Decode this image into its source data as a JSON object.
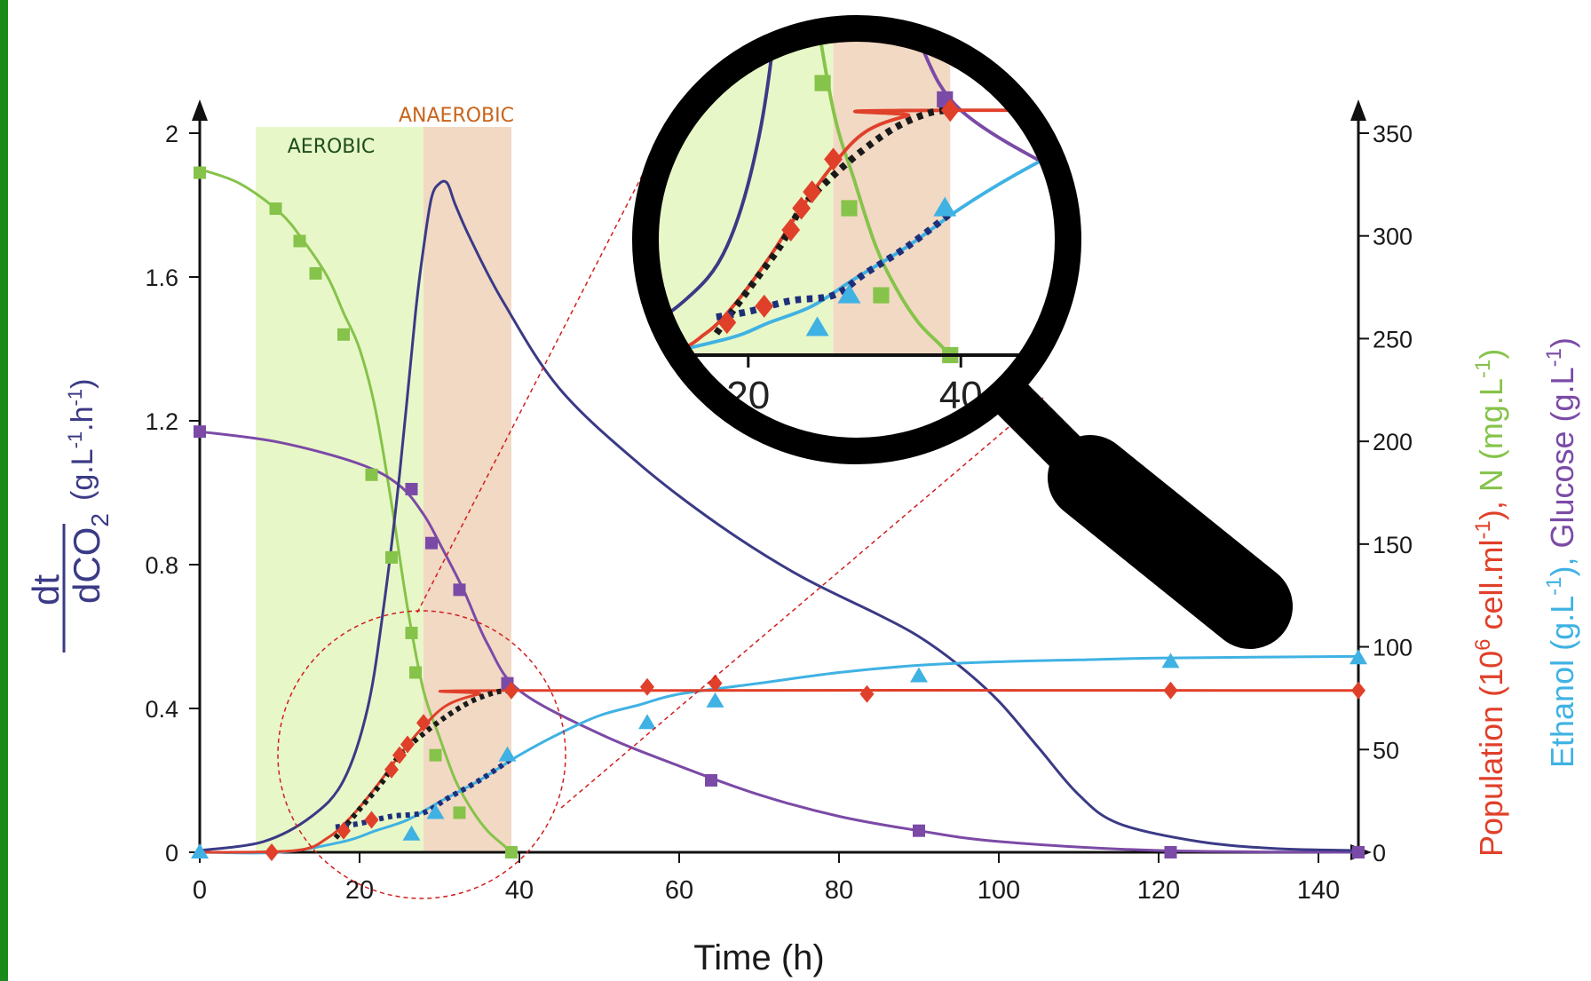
{
  "colors": {
    "accent_bar": "#1a8a1a",
    "co2": "#3b3a86",
    "glucose": "#7b4aa6",
    "nitrogen": "#86c34a",
    "population": "#e0402a",
    "ethanol": "#3fb2e3",
    "model_dots": "#1a1a1a",
    "model_dots_eth": "#1e2f7a",
    "aerobic_bg": "#e8f7c8",
    "anaerobic_bg": "#f2d9c4",
    "aerobic_text": "#1d4d1d",
    "anaerobic_text": "#c9641a",
    "zoom_line": "#d11f1f",
    "co2_inner": "#5d6a78"
  },
  "chart_data": {
    "type": "line",
    "xlabel": "Time (h)",
    "ylabel_left": {
      "prefix": "dCO",
      "sub": "2",
      "den": "dt",
      "units": "(g.L",
      "sup1": "-1",
      "mid": ".h",
      "sup2": "-1",
      "end": ")"
    },
    "ylabel_right_1": {
      "a": "Population (10",
      "sup": "6",
      "b": " cell.ml",
      "sup2": "-1",
      "c": "), ",
      "d": "N (mg.L",
      "sup3": "-1",
      "e": ")"
    },
    "ylabel_right_2": {
      "a": "Ethanol (g.L",
      "sup": "-1",
      "b": "), ",
      "c": "Glucose (g.L",
      "sup2": "-1",
      "d": ")"
    },
    "x_ticks": [
      "0",
      "20",
      "40",
      "60",
      "80",
      "100",
      "120",
      "140"
    ],
    "left_ticks": [
      "0",
      "0.4",
      "0.8",
      "1.2",
      "1.6",
      "2"
    ],
    "right_ticks": [
      "0",
      "50",
      "100",
      "150",
      "200",
      "250",
      "300",
      "350"
    ],
    "xlim": [
      0,
      145
    ],
    "ylim_left": [
      0,
      2
    ],
    "ylim_right": [
      0,
      350
    ],
    "regions": [
      {
        "name": "AEROBIC",
        "x": [
          7,
          28
        ]
      },
      {
        "name": "ANAEROBIC",
        "x": [
          28,
          39
        ]
      }
    ],
    "series": {
      "co2_curve": [
        [
          0,
          0.005
        ],
        [
          8,
          0.03
        ],
        [
          14,
          0.1
        ],
        [
          18,
          0.2
        ],
        [
          21,
          0.4
        ],
        [
          23,
          0.68
        ],
        [
          25,
          1.05
        ],
        [
          27,
          1.5
        ],
        [
          28,
          1.68
        ],
        [
          29,
          1.82
        ],
        [
          30,
          1.86
        ],
        [
          31,
          1.86
        ],
        [
          32,
          1.8
        ],
        [
          34,
          1.7
        ],
        [
          38,
          1.53
        ],
        [
          45,
          1.29
        ],
        [
          55,
          1.08
        ],
        [
          65,
          0.91
        ],
        [
          75,
          0.77
        ],
        [
          85,
          0.66
        ],
        [
          90,
          0.6
        ],
        [
          95,
          0.52
        ],
        [
          100,
          0.42
        ],
        [
          105,
          0.29
        ],
        [
          110,
          0.16
        ],
        [
          115,
          0.08
        ],
        [
          125,
          0.03
        ],
        [
          135,
          0.01
        ],
        [
          145,
          0.005
        ]
      ],
      "glucose_curve": [
        [
          0,
          1.17
        ],
        [
          10,
          1.14
        ],
        [
          20,
          1.08
        ],
        [
          25,
          1.02
        ],
        [
          28,
          0.94
        ],
        [
          30,
          0.86
        ],
        [
          33,
          0.73
        ],
        [
          36,
          0.58
        ],
        [
          40,
          0.45
        ],
        [
          50,
          0.33
        ],
        [
          60,
          0.24
        ],
        [
          70,
          0.16
        ],
        [
          80,
          0.1
        ],
        [
          90,
          0.06
        ],
        [
          100,
          0.03
        ],
        [
          120,
          0.005
        ],
        [
          145,
          0.0
        ]
      ],
      "glucose_points": [
        [
          0,
          1.17
        ],
        [
          26.5,
          1.01
        ],
        [
          29,
          0.86
        ],
        [
          32.5,
          0.73
        ],
        [
          38.5,
          0.47
        ],
        [
          64,
          0.2
        ],
        [
          90,
          0.06
        ],
        [
          121.5,
          0.0
        ],
        [
          145,
          0.0
        ]
      ],
      "nitrogen_curve": [
        [
          0,
          1.9
        ],
        [
          5,
          1.86
        ],
        [
          10,
          1.78
        ],
        [
          13,
          1.7
        ],
        [
          16,
          1.6
        ],
        [
          18,
          1.5
        ],
        [
          20,
          1.4
        ],
        [
          22,
          1.23
        ],
        [
          24,
          0.97
        ],
        [
          26,
          0.68
        ],
        [
          28,
          0.45
        ],
        [
          30,
          0.32
        ],
        [
          32,
          0.2
        ],
        [
          34,
          0.12
        ],
        [
          36,
          0.06
        ],
        [
          38,
          0.02
        ],
        [
          39,
          0.0
        ]
      ],
      "nitrogen_points": [
        [
          0,
          1.89
        ],
        [
          9.5,
          1.79
        ],
        [
          12.5,
          1.7
        ],
        [
          14.5,
          1.61
        ],
        [
          18,
          1.44
        ],
        [
          21.5,
          1.05
        ],
        [
          24,
          0.82
        ],
        [
          26.5,
          0.61
        ],
        [
          27,
          0.5
        ],
        [
          29.5,
          0.27
        ],
        [
          32.5,
          0.11
        ],
        [
          39,
          0.0
        ]
      ],
      "population_curve": [
        [
          0,
          0.0
        ],
        [
          12,
          0.005
        ],
        [
          16,
          0.04
        ],
        [
          19,
          0.1
        ],
        [
          22,
          0.18
        ],
        [
          25,
          0.27
        ],
        [
          28,
          0.35
        ],
        [
          31,
          0.41
        ],
        [
          35,
          0.44
        ],
        [
          39,
          0.45
        ],
        [
          145,
          0.45
        ]
      ],
      "population_points": [
        [
          9,
          0.0
        ],
        [
          18,
          0.06
        ],
        [
          21.5,
          0.09
        ],
        [
          24,
          0.23
        ],
        [
          25,
          0.27
        ],
        [
          26,
          0.3
        ],
        [
          28,
          0.36
        ],
        [
          39,
          0.45
        ],
        [
          56,
          0.46
        ],
        [
          64.5,
          0.47
        ],
        [
          83.5,
          0.44
        ],
        [
          121.5,
          0.45
        ],
        [
          145,
          0.45
        ]
      ],
      "population_model": [
        [
          17,
          0.04
        ],
        [
          20,
          0.12
        ],
        [
          23,
          0.2
        ],
        [
          25,
          0.27
        ],
        [
          28,
          0.33
        ],
        [
          31,
          0.38
        ],
        [
          34,
          0.42
        ],
        [
          37,
          0.445
        ],
        [
          39,
          0.45
        ]
      ],
      "ethanol_curve": [
        [
          0,
          0.0
        ],
        [
          10,
          0.0
        ],
        [
          18,
          0.03
        ],
        [
          22,
          0.06
        ],
        [
          26,
          0.09
        ],
        [
          30,
          0.14
        ],
        [
          35,
          0.2
        ],
        [
          40,
          0.27
        ],
        [
          45,
          0.33
        ],
        [
          50,
          0.38
        ],
        [
          55,
          0.41
        ],
        [
          60,
          0.44
        ],
        [
          70,
          0.47
        ],
        [
          80,
          0.5
        ],
        [
          90,
          0.52
        ],
        [
          100,
          0.53
        ],
        [
          110,
          0.535
        ],
        [
          120,
          0.54
        ],
        [
          145,
          0.545
        ]
      ],
      "ethanol_points": [
        [
          0,
          0.0
        ],
        [
          26.5,
          0.05
        ],
        [
          29.5,
          0.11
        ],
        [
          38.5,
          0.27
        ],
        [
          56,
          0.36
        ],
        [
          64.5,
          0.42
        ],
        [
          90,
          0.49
        ],
        [
          121.5,
          0.53
        ],
        [
          145,
          0.54
        ]
      ],
      "ethanol_model": [
        [
          17,
          0.07
        ],
        [
          20,
          0.08
        ],
        [
          24,
          0.1
        ],
        [
          28,
          0.11
        ],
        [
          31,
          0.15
        ],
        [
          35,
          0.2
        ],
        [
          39,
          0.26
        ]
      ]
    }
  },
  "lens": {
    "ticks": [
      "20",
      "40"
    ]
  }
}
